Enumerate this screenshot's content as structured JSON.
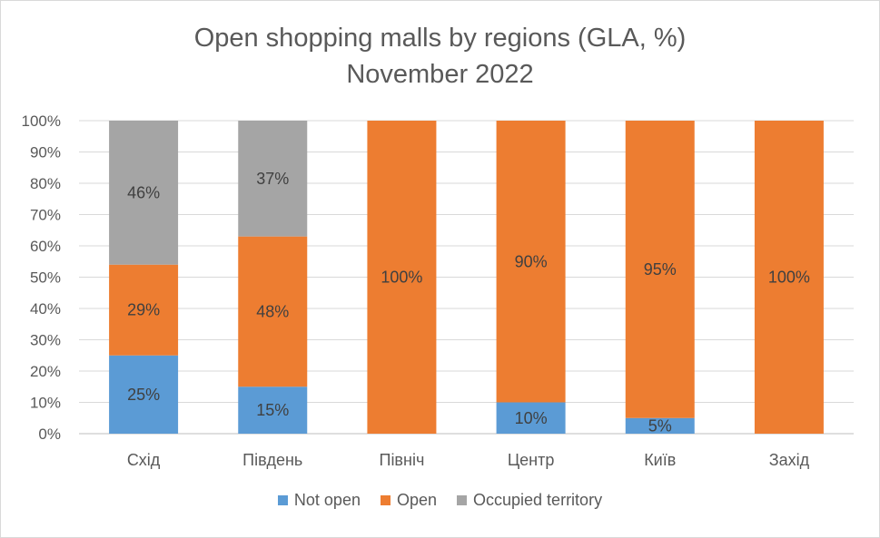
{
  "chart_data": {
    "type": "bar",
    "stacked": true,
    "title": "Open shopping malls by regions (GLA, %)",
    "subtitle": "November 2022",
    "categories": [
      "Схід",
      "Південь",
      "Північ",
      "Центр",
      "Київ",
      "Захід"
    ],
    "series": [
      {
        "name": "Not open",
        "color": "#5b9bd5",
        "values": [
          25,
          15,
          0,
          10,
          5,
          0
        ],
        "labels": [
          "25%",
          "15%",
          "",
          "10%",
          "5%",
          ""
        ]
      },
      {
        "name": "Open",
        "color": "#ed7d31",
        "values": [
          29,
          48,
          100,
          90,
          95,
          100
        ],
        "labels": [
          "29%",
          "48%",
          "100%",
          "90%",
          "95%",
          "100%"
        ]
      },
      {
        "name": "Occupied territory",
        "color": "#a5a5a5",
        "values": [
          46,
          37,
          0,
          0,
          0,
          0
        ],
        "labels": [
          "46%",
          "37%",
          "",
          "",
          "",
          ""
        ]
      }
    ],
    "ylim": [
      0,
      100
    ],
    "y_ticks": [
      "0%",
      "10%",
      "20%",
      "30%",
      "40%",
      "50%",
      "60%",
      "70%",
      "80%",
      "90%",
      "100%"
    ],
    "grid": true,
    "legend_position": "bottom"
  }
}
